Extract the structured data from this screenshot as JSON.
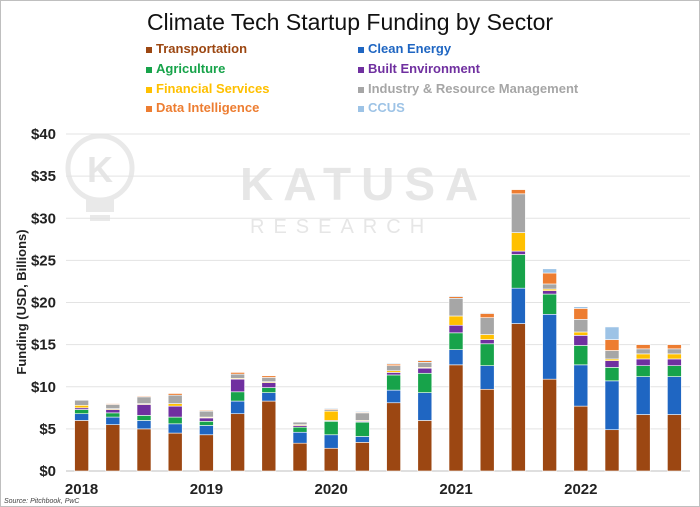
{
  "chart_data": {
    "type": "bar",
    "stacked": true,
    "title": "Climate Tech Startup Funding by Sector",
    "ylabel": "Funding (USD, Billions)",
    "xlabel": "",
    "ylim": [
      0,
      40
    ],
    "yticks": [
      "$0",
      "$5",
      "$10",
      "$15",
      "$20",
      "$25",
      "$30",
      "$35",
      "$40"
    ],
    "ytick_values": [
      0,
      5,
      10,
      15,
      20,
      25,
      30,
      35,
      40
    ],
    "grid": true,
    "legend_position": "top",
    "x_year_labels": [
      {
        "label": "2018",
        "at_index": 0
      },
      {
        "label": "2019",
        "at_index": 4
      },
      {
        "label": "2020",
        "at_index": 8
      },
      {
        "label": "2021",
        "at_index": 12
      },
      {
        "label": "2022",
        "at_index": 16
      }
    ],
    "categories": [
      "2018 Q1",
      "2018 Q2",
      "2018 Q3",
      "2018 Q4",
      "2019 Q1",
      "2019 Q2",
      "2019 Q3",
      "2019 Q4",
      "2020 Q1",
      "2020 Q2",
      "2020 Q3",
      "2020 Q4",
      "2021 Q1",
      "2021 Q2",
      "2021 Q3",
      "2021 Q4",
      "2022 Q1",
      "2022 Q2",
      "2022 Q3",
      "2022 Q4"
    ],
    "series": [
      {
        "name": "Transportation",
        "color": "#9c4712",
        "values": [
          6.0,
          5.5,
          5.0,
          4.5,
          4.3,
          6.8,
          8.3,
          3.3,
          2.7,
          3.4,
          8.1,
          6.0,
          12.6,
          9.7,
          17.5,
          10.9,
          7.7,
          4.9,
          6.7,
          6.7
        ]
      },
      {
        "name": "Clean Energy",
        "color": "#1f66c2",
        "values": [
          0.8,
          0.9,
          1.0,
          1.1,
          1.1,
          1.5,
          1.0,
          1.3,
          1.6,
          0.7,
          1.5,
          3.3,
          1.8,
          2.8,
          4.2,
          7.7,
          4.9,
          5.8,
          4.5,
          4.5
        ]
      },
      {
        "name": "Agriculture",
        "color": "#17a34a",
        "values": [
          0.5,
          0.5,
          0.6,
          0.8,
          0.5,
          1.1,
          0.6,
          0.6,
          1.6,
          1.7,
          1.8,
          2.3,
          2.0,
          2.6,
          4.0,
          2.4,
          2.3,
          1.6,
          1.3,
          1.3
        ]
      },
      {
        "name": "Built Environment",
        "color": "#7030a0",
        "values": [
          0.2,
          0.4,
          1.3,
          1.3,
          0.4,
          1.5,
          0.6,
          0.2,
          0.1,
          0.1,
          0.3,
          0.6,
          0.9,
          0.5,
          0.4,
          0.4,
          1.2,
          0.8,
          0.8,
          0.8
        ]
      },
      {
        "name": "Financial Services",
        "color": "#ffc000",
        "values": [
          0.3,
          0.1,
          0.1,
          0.3,
          0.1,
          0.1,
          0.1,
          0.1,
          1.1,
          0.1,
          0.2,
          0.1,
          1.1,
          0.6,
          2.2,
          0.2,
          0.4,
          0.2,
          0.6,
          0.6
        ]
      },
      {
        "name": "Industry & Resource Management",
        "color": "#a6a6a6",
        "values": [
          0.6,
          0.5,
          0.8,
          1.0,
          0.7,
          0.5,
          0.5,
          0.3,
          0.2,
          0.9,
          0.6,
          0.6,
          2.1,
          2.0,
          4.6,
          0.6,
          1.5,
          1.0,
          0.6,
          0.6
        ]
      },
      {
        "name": "Data Intelligence",
        "color": "#ed7d31",
        "values": [
          0.0,
          0.1,
          0.1,
          0.2,
          0.1,
          0.2,
          0.2,
          0.0,
          0.1,
          0.1,
          0.2,
          0.2,
          0.2,
          0.5,
          0.5,
          1.3,
          1.3,
          1.3,
          0.5,
          0.5
        ]
      },
      {
        "name": "CCUS",
        "color": "#9dc3e6",
        "values": [
          0.0,
          0.0,
          0.0,
          0.0,
          0.0,
          0.0,
          0.0,
          0.0,
          0.1,
          0.1,
          0.1,
          0.1,
          0.1,
          0.1,
          0.0,
          0.5,
          0.2,
          1.5,
          0.0,
          0.0
        ]
      }
    ]
  },
  "watermark": {
    "brand": "KATUSA",
    "sub": "RESEARCH"
  },
  "source_note": "Source: Pitchbook, PwC"
}
